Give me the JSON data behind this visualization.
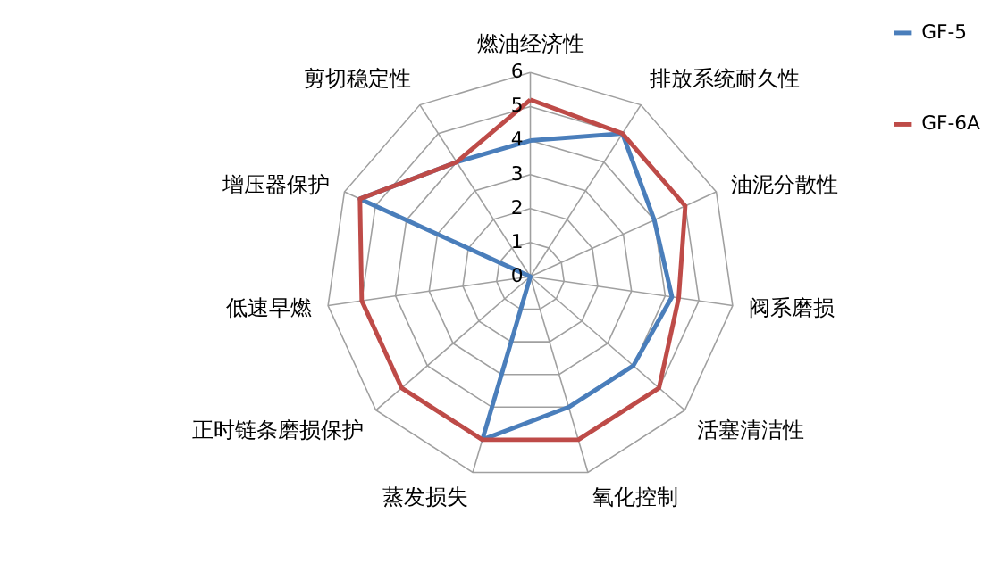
{
  "chart_data": {
    "type": "radar",
    "categories": [
      "燃油经济性",
      "排放系统耐久性",
      "油泥分散性",
      "阀系磨损",
      "活塞清洁性",
      "氧化控制",
      "蒸发损失",
      "正时链条磨损保护",
      "低速早燃",
      "增压器保护",
      "剪切稳定性"
    ],
    "series": [
      {
        "name": "GF-5",
        "color": "#4a7ebb",
        "values": [
          4,
          5,
          4,
          4.2,
          4,
          4,
          5,
          0,
          0,
          5.5,
          4
        ]
      },
      {
        "name": "GF-6A",
        "color": "#be4b48",
        "values": [
          5.2,
          5,
          5,
          4.4,
          5,
          5,
          5,
          5,
          5,
          5.5,
          4
        ]
      }
    ],
    "ylim": [
      0,
      6
    ],
    "yticks": [
      0,
      1,
      2,
      3,
      4,
      5,
      6
    ],
    "grid": true,
    "legend": "right"
  }
}
